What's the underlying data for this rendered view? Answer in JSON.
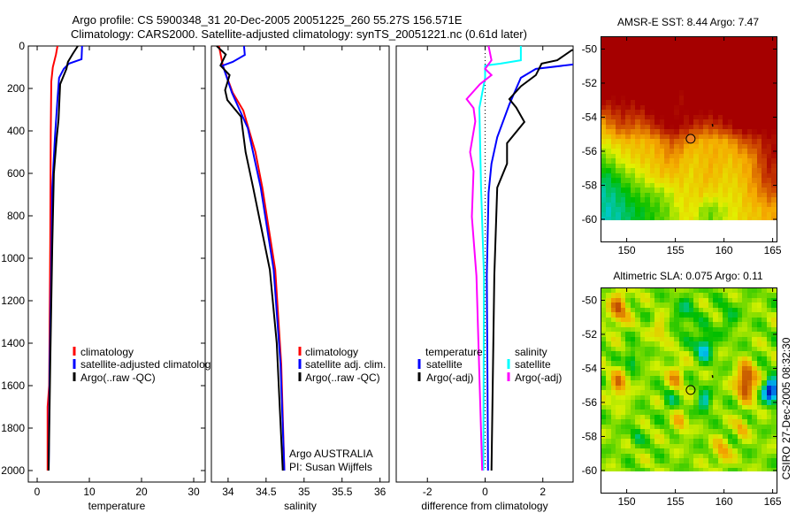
{
  "title": {
    "line1": "Argo profile: CS 5900348_31 20-Dec-2005 20051225_260 55.27S 156.571E",
    "line2": "Climatology: CARS2000. Satellite-adjusted climatology: synTS_20051221.nc (0.61d later)"
  },
  "colors": {
    "climatology": "#ff0000",
    "satellite": "#0000ff",
    "argo": "#000000",
    "sal_satellite": "#00ffff",
    "sal_argo": "#ff00ff"
  },
  "chart_data": [
    {
      "type": "line",
      "id": "temperature",
      "xlabel": "temperature",
      "ylabel": "",
      "xlim": [
        -1.7,
        32.2
      ],
      "ylim": [
        2050,
        0
      ],
      "xticks": [
        "0",
        "10",
        "20",
        "30"
      ],
      "xtick_values": [
        0,
        10,
        20,
        30
      ],
      "yticks": [
        "0",
        "200",
        "400",
        "600",
        "800",
        "1000",
        "1200",
        "1400",
        "1600",
        "1800",
        "2000"
      ],
      "ytick_values": [
        0,
        200,
        400,
        600,
        800,
        1000,
        1200,
        1400,
        1600,
        1800,
        2000
      ],
      "legend": [
        "climatology",
        "satellite-adjusted climatology",
        "Argo(..raw -QC)"
      ],
      "series": [
        {
          "name": "climatology",
          "color": "#ff0000",
          "depth": [
            0,
            40,
            100,
            167,
            400,
            930,
            1600,
            1700,
            2000
          ],
          "values": [
            3.9,
            3.6,
            3.0,
            2.7,
            2.6,
            2.5,
            2.3,
            2.0,
            2.0
          ]
        },
        {
          "name": "satellite-adjusted climatology",
          "color": "#0000ff",
          "depth": [
            0,
            62,
            83,
            108,
            150,
            250,
            430,
            667,
            1054,
            1500,
            2000
          ],
          "values": [
            8.6,
            8.5,
            6.1,
            5.1,
            4.2,
            3.9,
            3.4,
            2.9,
            2.7,
            2.4,
            2.2
          ]
        },
        {
          "name": "Argo(..raw -QC)",
          "color": "#000000",
          "depth": [
            0,
            38,
            75,
            108,
            180,
            346,
            442,
            600,
            942,
            1500,
            2000
          ],
          "values": [
            7.8,
            6.8,
            5.9,
            5.6,
            4.4,
            4.1,
            3.7,
            3.2,
            2.9,
            2.5,
            2.2
          ]
        }
      ]
    },
    {
      "type": "line",
      "id": "salinity",
      "xlabel": "salinity",
      "xlim": [
        33.78,
        36.12
      ],
      "ylim": [
        2050,
        0
      ],
      "xticks": [
        "34",
        "34.5",
        "35",
        "35.5",
        "36"
      ],
      "xtick_values": [
        34,
        34.5,
        35,
        35.5,
        36
      ],
      "legend": [
        "climatology",
        "satellite adj. clim.",
        "Argo(..raw -QC)"
      ],
      "annotation": [
        "Argo AUSTRALIA",
        "PI: Susan Wijffels"
      ],
      "series": [
        {
          "name": "climatology",
          "color": "#ff0000",
          "depth": [
            0,
            92,
            220,
            304,
            500,
            667,
            1054,
            1500,
            2000
          ],
          "values": [
            33.88,
            33.93,
            34.06,
            34.2,
            34.36,
            34.45,
            34.62,
            34.7,
            34.74
          ]
        },
        {
          "name": "satellite adj. clim.",
          "color": "#0000ff",
          "depth": [
            0,
            42,
            75,
            92,
            220,
            387,
            667,
            1054,
            1500,
            2000
          ],
          "values": [
            34.21,
            34.22,
            34.06,
            33.93,
            34.05,
            34.26,
            34.43,
            34.6,
            34.69,
            34.74
          ]
        },
        {
          "name": "Argo(..raw -QC)",
          "color": "#000000",
          "depth": [
            0,
            40,
            92,
            137,
            208,
            254,
            333,
            500,
            667,
            1054,
            1400,
            2000
          ],
          "values": [
            33.85,
            33.97,
            33.9,
            34.02,
            33.96,
            33.99,
            34.17,
            34.23,
            34.33,
            34.55,
            34.64,
            34.72
          ]
        }
      ]
    },
    {
      "type": "line",
      "id": "difference",
      "xlabel": "difference from climatology",
      "xlim": [
        -3.08,
        3.05
      ],
      "ylim": [
        2050,
        0
      ],
      "xticks": [
        "-2",
        "0",
        "2"
      ],
      "xtick_values": [
        -2,
        0,
        2
      ],
      "legend_headers": [
        "temperature",
        "salinity"
      ],
      "legend": [
        "satellite",
        "Argo(-adj)",
        "satellite",
        "Argo(-adj)"
      ],
      "series": [
        {
          "name": "temperature satellite",
          "color": "#0000ff",
          "depth": [
            0,
            60,
            83,
            108,
            150,
            275,
            430,
            554,
            692,
            1083,
            2000
          ],
          "values": [
            4.7,
            4.6,
            3.3,
            1.76,
            1.24,
            0.84,
            0.42,
            0.22,
            0.12,
            0.06,
            0.1
          ]
        },
        {
          "name": "temperature Argo(-adj)",
          "color": "#000000",
          "depth": [
            0,
            20,
            67,
            83,
            137,
            190,
            250,
            290,
            358,
            458,
            554,
            667,
            1083,
            2000
          ],
          "values": [
            3.9,
            3.0,
            2.5,
            1.96,
            1.76,
            1.24,
            0.84,
            1.08,
            1.36,
            0.76,
            0.76,
            0.42,
            0.32,
            0.22
          ]
        },
        {
          "name": "salinity satellite",
          "color": "#00ffff",
          "depth": [
            0,
            67,
            83,
            92,
            150,
            292,
            667,
            1083,
            2000
          ],
          "values": [
            1.24,
            1.24,
            0.54,
            0,
            0,
            -0.2,
            -0.14,
            -0.04,
            -0.06
          ]
        },
        {
          "name": "salinity Argo(-adj)",
          "color": "#ff00ff",
          "depth": [
            0,
            67,
            108,
            137,
            180,
            250,
            292,
            355,
            500,
            590,
            804,
            1083,
            2000
          ],
          "values": [
            0.12,
            0.22,
            0,
            0.22,
            -0.18,
            -0.64,
            -0.4,
            -0.34,
            -0.52,
            -0.4,
            -0.46,
            -0.3,
            -0.1
          ]
        }
      ]
    },
    {
      "type": "heatmap",
      "id": "sst_map",
      "title": "AMSR-E SST: 8.44 Argo: 7.47",
      "xlim": [
        147.4,
        165.4
      ],
      "ylim": [
        -61.3,
        -49.3
      ],
      "xticks": [
        "150",
        "155",
        "160",
        "165"
      ],
      "xtick_values": [
        150,
        155,
        160,
        165
      ],
      "yticks": [
        "-50",
        "-52",
        "-54",
        "-56",
        "-58",
        "-60"
      ],
      "ytick_values": [
        -50,
        -52,
        -54,
        -56,
        -58,
        -60
      ],
      "data_lat_range": [
        -60,
        -49.3
      ],
      "marker": {
        "lon": 156.571,
        "lat": -55.27,
        "fill": "#f08020"
      },
      "grid_lats": [
        -49.5,
        -50.5,
        -51.5,
        -52.5,
        -53.5,
        -54.5,
        -55.5,
        -56.5,
        -57.5,
        -58.5,
        -59.5
      ],
      "grid_lon_start": 147.5,
      "grid_lon_step": 1,
      "level_rows": [
        [
          1,
          1,
          1,
          1,
          1,
          1,
          1,
          1,
          1,
          1,
          1,
          1,
          1,
          1,
          1,
          1,
          1,
          1
        ],
        [
          1,
          1,
          1,
          1,
          1,
          1,
          1,
          1,
          1,
          1,
          1,
          1,
          1,
          1,
          1,
          1,
          1,
          1
        ],
        [
          1,
          1,
          1,
          1,
          1,
          1,
          1,
          1,
          1,
          1,
          1,
          1,
          1,
          1,
          1,
          1,
          1,
          1
        ],
        [
          1,
          1,
          1,
          1,
          1,
          1,
          1,
          1,
          0.95,
          1,
          1,
          1,
          1,
          1,
          1,
          1,
          1,
          1
        ],
        [
          0.85,
          0.88,
          0.92,
          0.9,
          0.92,
          1,
          1,
          1,
          0.93,
          1,
          1,
          1,
          1,
          1,
          1,
          1,
          1,
          1
        ],
        [
          0.62,
          0.72,
          0.82,
          0.78,
          0.75,
          0.84,
          0.92,
          1,
          0.95,
          0.9,
          0.85,
          0.82,
          0.86,
          0.92,
          1,
          1,
          1,
          1
        ],
        [
          0.45,
          0.52,
          0.56,
          0.58,
          0.58,
          0.6,
          0.66,
          0.76,
          0.74,
          0.62,
          0.6,
          0.6,
          0.6,
          0.62,
          0.72,
          0.8,
          0.82,
          0.92
        ],
        [
          0.32,
          0.36,
          0.46,
          0.5,
          0.55,
          0.55,
          0.6,
          0.66,
          0.6,
          0.55,
          0.55,
          0.6,
          0.6,
          0.55,
          0.6,
          0.62,
          0.76,
          0.9
        ],
        [
          0.14,
          0.2,
          0.3,
          0.36,
          0.42,
          0.5,
          0.55,
          0.55,
          0.56,
          0.5,
          0.55,
          0.6,
          0.55,
          0.52,
          0.56,
          0.62,
          0.72,
          0.86
        ],
        [
          0.08,
          0.1,
          0.16,
          0.25,
          0.3,
          0.32,
          0.36,
          0.42,
          0.5,
          0.5,
          0.55,
          0.5,
          0.5,
          0.5,
          0.5,
          0.6,
          0.66,
          0.76
        ],
        [
          0.05,
          0.06,
          0.1,
          0.16,
          0.2,
          0.25,
          0.3,
          0.36,
          0.45,
          0.5,
          0.4,
          0.32,
          0.38,
          0.45,
          0.5,
          0.55,
          0.56,
          0.62
        ]
      ]
    },
    {
      "type": "heatmap",
      "id": "sla_map",
      "title": "Altimetric SLA: 0.075 Argo: 0.11",
      "xlim": [
        147.4,
        165.4
      ],
      "ylim": [
        -61.3,
        -49.3
      ],
      "xticks": [
        "150",
        "155",
        "160",
        "165"
      ],
      "xtick_values": [
        150,
        155,
        160,
        165
      ],
      "yticks": [
        "-50",
        "-52",
        "-54",
        "-56",
        "-58",
        "-60"
      ],
      "ytick_values": [
        -50,
        -52,
        -54,
        -56,
        -58,
        -60
      ],
      "data_lat_range": [
        -60,
        -49.3
      ],
      "marker": {
        "lon": 156.571,
        "lat": -55.27,
        "fill": "none"
      },
      "base_level": 0.52,
      "features": [
        {
          "lon": 149.2,
          "lat": -50.5,
          "amp": 0.28,
          "r": 1.0
        },
        {
          "lon": 149.2,
          "lat": -55.0,
          "amp": 0.25,
          "r": 0.9
        },
        {
          "lon": 153.5,
          "lat": -51.8,
          "amp": 0.15,
          "r": 0.8
        },
        {
          "lon": 155.0,
          "lat": -54.5,
          "amp": 0.2,
          "r": 0.9
        },
        {
          "lon": 162.3,
          "lat": -54.8,
          "amp": 0.42,
          "r": 1.0
        },
        {
          "lon": 164.8,
          "lat": -55.3,
          "amp": -0.5,
          "r": 0.7
        },
        {
          "lon": 158.0,
          "lat": -52.7,
          "amp": -0.25,
          "r": 0.9
        },
        {
          "lon": 158.0,
          "lat": -56.0,
          "amp": -0.22,
          "r": 0.7
        },
        {
          "lon": 150.5,
          "lat": -53.5,
          "amp": -0.2,
          "r": 0.6
        },
        {
          "lon": 154.5,
          "lat": -55.8,
          "amp": -0.12,
          "r": 0.8
        },
        {
          "lon": 155.5,
          "lat": -57.2,
          "amp": 0.18,
          "r": 0.7
        },
        {
          "lon": 159.8,
          "lat": -59.0,
          "amp": 0.2,
          "r": 0.8
        },
        {
          "lon": 161.8,
          "lat": -57.5,
          "amp": 0.18,
          "r": 0.6
        },
        {
          "lon": 151.0,
          "lat": -58.0,
          "amp": -0.12,
          "r": 0.6
        },
        {
          "lon": 156.0,
          "lat": -50.8,
          "amp": -0.12,
          "r": 1.2
        },
        {
          "lon": 160.5,
          "lat": -51.0,
          "amp": -0.1,
          "r": 1.0
        }
      ]
    }
  ],
  "footer": {
    "stamp": "CSIRO 27-Dec-2005 08:32:30"
  }
}
